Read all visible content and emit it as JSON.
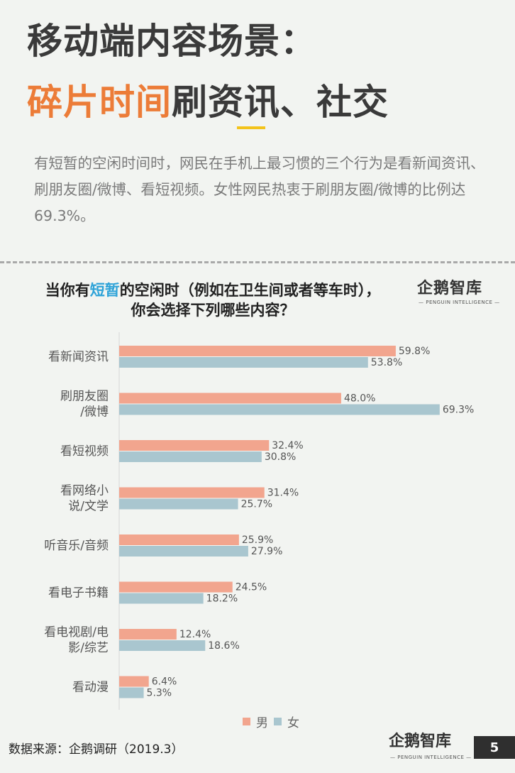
{
  "header": {
    "title_line1": "移动端内容场景：",
    "title_accent": "碎片时间",
    "title_rest": "刷资讯、社交"
  },
  "intro": "有短暂的空闲时间时，网民在手机上最习惯的三个行为是看新闻资讯、刷朋友圈/微博、看短视频。女性网民热衷于刷朋友圈/微博的比例达69.3%。",
  "chart_title": {
    "pre": "当你有",
    "highlight": "短暂",
    "post": "的空闲时（例如在卫生间或者等车时），",
    "line2": "你会选择下列哪些内容？"
  },
  "logo": {
    "name": "企鹅智库",
    "tagline": "— PENGUIN INTELLIGENCE —"
  },
  "colors": {
    "male": "#f2a58e",
    "female": "#a9c6cf",
    "accent": "#ec7c38",
    "highlight": "#2fa3d8"
  },
  "chart_data": {
    "type": "bar",
    "orientation": "horizontal",
    "categories": [
      [
        "看新闻资讯"
      ],
      [
        "刷朋友圈",
        "/微博"
      ],
      [
        "看短视频"
      ],
      [
        "看网络小",
        "说/文学"
      ],
      [
        "听音乐/音频"
      ],
      [
        "看电子书籍"
      ],
      [
        "看电视剧/电",
        "影/综艺"
      ],
      [
        "看动漫"
      ]
    ],
    "series": [
      {
        "name": "男",
        "values": [
          59.8,
          48.0,
          32.4,
          31.4,
          25.9,
          24.5,
          12.4,
          6.4
        ],
        "labels": [
          "59.8%",
          "48.0%",
          "32.4%",
          "31.4%",
          "25.9%",
          "24.5%",
          "12.4%",
          "6.4%"
        ]
      },
      {
        "name": "女",
        "values": [
          53.8,
          69.3,
          30.8,
          25.7,
          27.9,
          18.2,
          18.6,
          5.3
        ],
        "labels": [
          "53.8%",
          "69.3%",
          "30.8%",
          "25.7%",
          "27.9%",
          "18.2%",
          "18.6%",
          "5.3%"
        ]
      }
    ],
    "xlim": [
      0,
      100
    ],
    "legend": "bottom"
  },
  "source": "数据来源：企鹅调研（2019.3）",
  "page_number": "5"
}
